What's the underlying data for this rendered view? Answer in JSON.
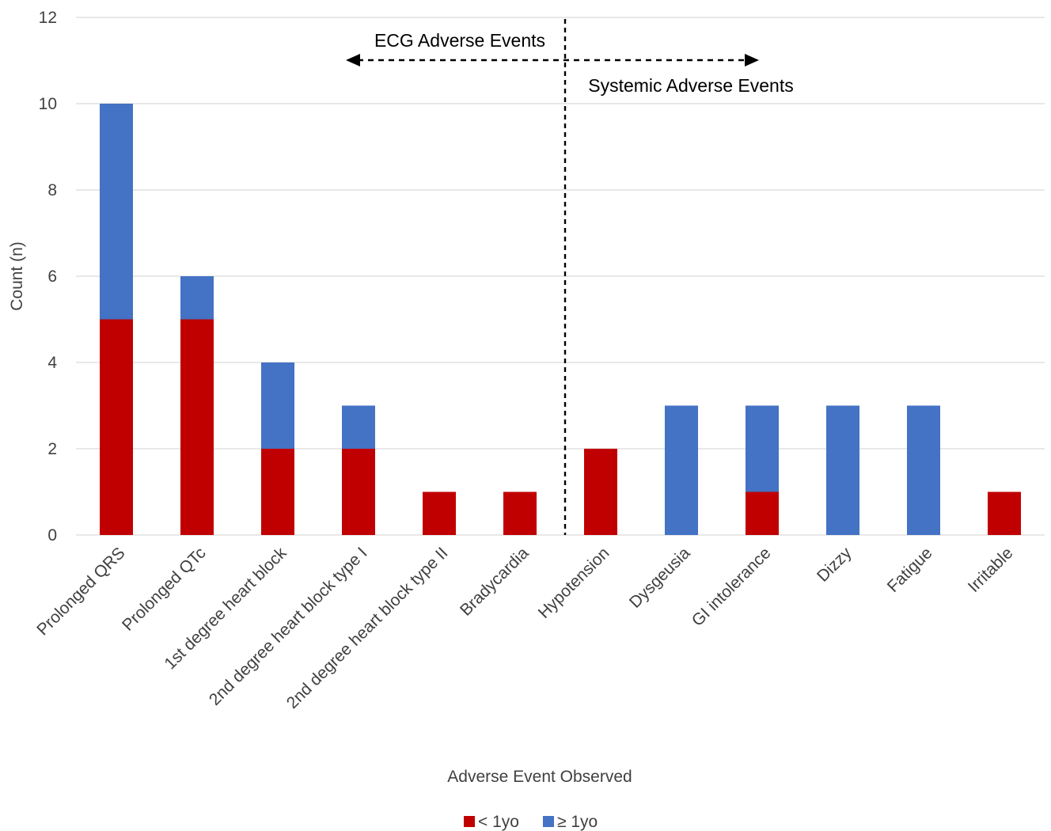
{
  "chart_data": {
    "type": "bar",
    "stacked": true,
    "title": "",
    "xlabel": "Adverse Event Observed",
    "ylabel": "Count (n)",
    "ylim": [
      0,
      12
    ],
    "yticks": [
      0,
      2,
      4,
      6,
      8,
      10,
      12
    ],
    "grid": true,
    "legend_position": "bottom",
    "categories": [
      "Prolonged QRS",
      "Prolonged QTc",
      "1st degree heart block",
      "2nd degree heart block type I",
      "2nd degree heart block type II",
      "Bradycardia",
      "Hypotension",
      "Dysgeusia",
      "GI intolerance",
      "Dizzy",
      "Fatigue",
      "Irritable"
    ],
    "series": [
      {
        "name": "< 1yo",
        "color": "#C00000",
        "values": [
          5,
          5,
          2,
          2,
          1,
          1,
          2,
          0,
          1,
          0,
          0,
          1
        ]
      },
      {
        "name": "≥ 1yo",
        "color": "#4472C4",
        "values": [
          5,
          1,
          2,
          1,
          0,
          0,
          0,
          3,
          2,
          3,
          3,
          0
        ]
      }
    ],
    "annotations": {
      "left_label": "ECG Adverse Events",
      "right_label": "Systemic Adverse Events",
      "divider_after_category": "Bradycardia"
    }
  }
}
